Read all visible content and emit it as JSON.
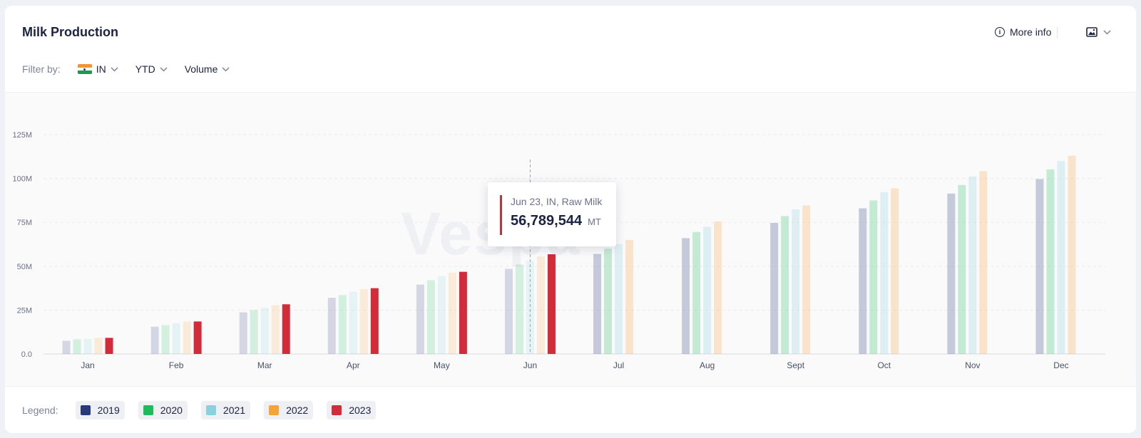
{
  "card": {
    "title": "Milk Production",
    "more_info_label": "More info",
    "info_glyph": "i",
    "export_icon": "image-icon"
  },
  "filters": {
    "label": "Filter by:",
    "country": "IN",
    "period": "YTD",
    "metric": "Volume"
  },
  "tooltip": {
    "label": "Jun 23, IN, Raw Milk",
    "value": "56,789,544",
    "unit": "MT"
  },
  "watermark": "Vespa",
  "legend": {
    "label": "Legend:",
    "items": [
      {
        "name": "2019",
        "color": "#283a7a"
      },
      {
        "name": "2020",
        "color": "#1fba5a"
      },
      {
        "name": "2021",
        "color": "#8ad0de"
      },
      {
        "name": "2022",
        "color": "#f6a43a"
      },
      {
        "name": "2023",
        "color": "#d22b3a"
      }
    ]
  },
  "chart_data": {
    "type": "bar",
    "categories": [
      "Jan",
      "Feb",
      "Mar",
      "Apr",
      "May",
      "Jun",
      "Jul",
      "Aug",
      "Sept",
      "Oct",
      "Nov",
      "Dec"
    ],
    "ylim": [
      0,
      125
    ],
    "ytick_values": [
      0,
      25,
      50,
      75,
      100,
      125
    ],
    "ytick_labels": [
      "0.0",
      "25M",
      "50M",
      "75M",
      "100M",
      "125M"
    ],
    "y_unit": "M",
    "highlight": {
      "series": "2023",
      "category": "Jun"
    },
    "series": [
      {
        "name": "2019",
        "color": "#283a7a",
        "values": [
          7.5,
          15.5,
          23.7,
          32,
          39.5,
          48.5,
          57,
          66,
          74.7,
          83,
          91.4,
          99.7
        ]
      },
      {
        "name": "2020",
        "color": "#1fba5a",
        "values": [
          8.3,
          16.5,
          25,
          33.6,
          42,
          51,
          60,
          69.5,
          78.6,
          87.5,
          96.3,
          105.2
        ]
      },
      {
        "name": "2021",
        "color": "#8ad0de",
        "values": [
          8.7,
          17.5,
          26.3,
          35.5,
          44.4,
          53.3,
          62.7,
          72.5,
          82.4,
          92.3,
          101.2,
          110
        ]
      },
      {
        "name": "2022",
        "color": "#f6a43a",
        "values": [
          9.2,
          18.5,
          27.8,
          37,
          46.3,
          55.6,
          65,
          75.5,
          84.6,
          94.4,
          104.2,
          113
        ]
      },
      {
        "name": "2023",
        "color": "#d22b3a",
        "values": [
          9.2,
          18.5,
          28.3,
          37.5,
          46.8,
          56.8,
          null,
          null,
          null,
          null,
          null,
          null
        ]
      }
    ]
  }
}
